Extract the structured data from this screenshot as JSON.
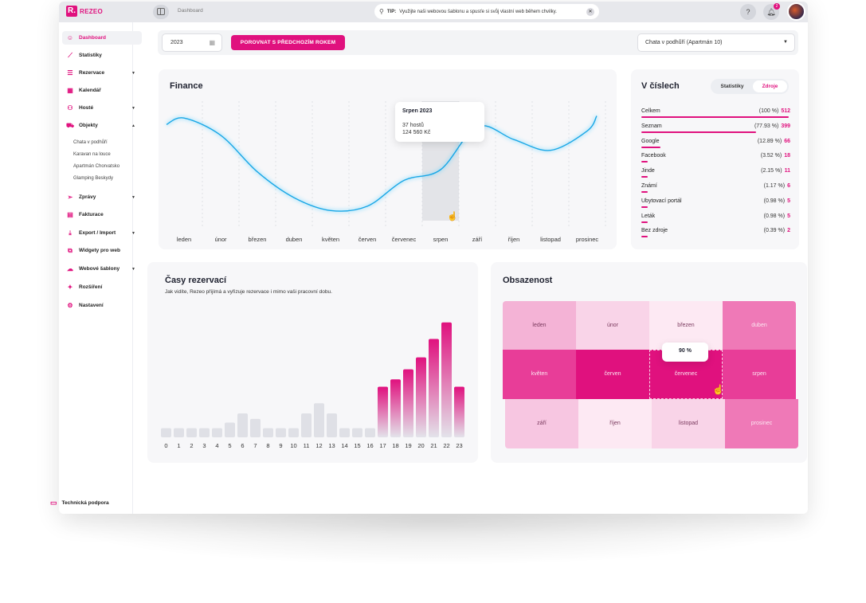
{
  "app": {
    "logo_mark": "R.",
    "logo_text": "REZEO",
    "breadcrumb": "Dashboard",
    "tip_prefix": "TIP:",
    "tip_text": "Využijte naši webovou šablonu a spusťe si svůj vlastní web během chvilky.",
    "help_label": "?",
    "notif_count": "2",
    "accent": "#e0117e"
  },
  "sidebar": {
    "items": [
      {
        "label": "Dashboard",
        "icon": "smile-icon"
      },
      {
        "label": "Statistiky",
        "icon": "chart-icon"
      },
      {
        "label": "Rezervace",
        "icon": "list-icon"
      },
      {
        "label": "Kalendář",
        "icon": "calendar-icon"
      },
      {
        "label": "Hosté",
        "icon": "people-icon"
      },
      {
        "label": "Objekty",
        "icon": "car-icon"
      },
      {
        "label": "Zprávy",
        "icon": "send-icon"
      },
      {
        "label": "Fakturace",
        "icon": "invoice-icon"
      },
      {
        "label": "Export / Import",
        "icon": "download-icon"
      },
      {
        "label": "Widgety pro web",
        "icon": "widget-icon"
      },
      {
        "label": "Webové šablony",
        "icon": "cloud-icon"
      },
      {
        "label": "Rozšíření",
        "icon": "puzzle-icon"
      },
      {
        "label": "Nastavení",
        "icon": "gear-icon"
      }
    ],
    "sub_items": [
      "Chata v podhůří",
      "Karavan na louce",
      "Apartmán Chorvatsko",
      "Glamping Beskydy"
    ],
    "support": "Technická podpora"
  },
  "filters": {
    "year": "2023",
    "compare_label": "POROVNAT S PŘEDCHOZÍM ROKEM",
    "object": "Chata v podhůří (Apartmán 10)"
  },
  "finance": {
    "title": "Finance",
    "tooltip_title": "Srpen 2023",
    "tooltip_guests": "37 hostů",
    "tooltip_amount": "124 560 Kč"
  },
  "numbers": {
    "title": "V číslech",
    "tab_stats": "Statistiky",
    "tab_sources": "Zdroje",
    "rows": [
      {
        "name": "Celkem",
        "pct": "(100 %)",
        "count": "512",
        "share": 1.0
      },
      {
        "name": "Seznam",
        "pct": "(77.93 %)",
        "count": "399",
        "share": 0.7793
      },
      {
        "name": "Google",
        "pct": "(12.89 %)",
        "count": "66",
        "share": 0.1289
      },
      {
        "name": "Facebook",
        "pct": "(3.52 %)",
        "count": "18",
        "share": 0.0352
      },
      {
        "name": "Jinde",
        "pct": "(2.15 %)",
        "count": "11",
        "share": 0.0215
      },
      {
        "name": "Známí",
        "pct": "(1.17 %)",
        "count": "6",
        "share": 0.0117
      },
      {
        "name": "Ubytovací portál",
        "pct": "(0.98 %)",
        "count": "5",
        "share": 0.0098
      },
      {
        "name": "Leták",
        "pct": "(0.98 %)",
        "count": "5",
        "share": 0.0098
      },
      {
        "name": "Bez zdroje",
        "pct": "(0.39 %)",
        "count": "2",
        "share": 0.0039
      }
    ]
  },
  "times": {
    "title": "Časy rezervací",
    "subtitle": "Jak vidíte, Rezeo přijímá a vyřizuje rezervace i mimo vaši pracovní dobu."
  },
  "occupancy": {
    "title": "Obsazenost",
    "tooltip": "90 %",
    "cells": [
      {
        "label": "leden",
        "color": "#f4b3d6",
        "text": "#7a3a5e"
      },
      {
        "label": "únor",
        "color": "#f9d4e8",
        "text": "#7a3a5e"
      },
      {
        "label": "březen",
        "color": "#fde9f3",
        "text": "#7a3a5e"
      },
      {
        "label": "duben",
        "color": "#ef79b7",
        "text": "#fbe6f1"
      },
      {
        "label": "květen",
        "color": "#e83d98",
        "text": "#fbe6f1"
      },
      {
        "label": "červen",
        "color": "#e0117e",
        "text": "#fbe6f1"
      },
      {
        "label": "červenec",
        "color": "#e0117e",
        "text": "#fbe6f1"
      },
      {
        "label": "srpen",
        "color": "#e83d98",
        "text": "#fbe6f1"
      },
      {
        "label": "září",
        "color": "#f7c6e1",
        "text": "#7a3a5e"
      },
      {
        "label": "říjen",
        "color": "#fde9f3",
        "text": "#7a3a5e"
      },
      {
        "label": "listopad",
        "color": "#f9d4e8",
        "text": "#7a3a5e"
      },
      {
        "label": "prosinec",
        "color": "#ef79b7",
        "text": "#fbe6f1"
      }
    ]
  },
  "chart_data": [
    {
      "type": "line",
      "title": "Finance",
      "categories": [
        "leden",
        "únor",
        "březen",
        "duben",
        "květen",
        "červen",
        "červenec",
        "srpen",
        "září",
        "říjen",
        "listopad",
        "prosinec"
      ],
      "values": [
        88,
        72,
        38,
        14,
        2,
        6,
        30,
        40,
        80,
        68,
        58,
        76
      ],
      "ylim": [
        0,
        100
      ],
      "grid": "vertical-dashed",
      "highlight": "srpen"
    },
    {
      "type": "bar",
      "title": "Časy rezervací",
      "categories": [
        "0",
        "1",
        "2",
        "3",
        "4",
        "5",
        "6",
        "7",
        "8",
        "9",
        "10",
        "11",
        "12",
        "13",
        "14",
        "15",
        "16",
        "17",
        "18",
        "19",
        "20",
        "21",
        "22",
        "23"
      ],
      "values": [
        10,
        10,
        10,
        10,
        10,
        16,
        26,
        20,
        10,
        10,
        10,
        26,
        37,
        26,
        10,
        10,
        10,
        55,
        63,
        74,
        87,
        107,
        125,
        55
      ],
      "highlight_from": "17",
      "ylim": [
        0,
        130
      ]
    },
    {
      "type": "heatmap",
      "title": "Obsazenost",
      "categories": [
        "leden",
        "únor",
        "březen",
        "duben",
        "květen",
        "červen",
        "červenec",
        "srpen",
        "září",
        "říjen",
        "listopad",
        "prosinec"
      ],
      "values": [
        35,
        20,
        10,
        60,
        80,
        95,
        90,
        80,
        25,
        10,
        20,
        60
      ],
      "highlight": "červenec"
    }
  ]
}
